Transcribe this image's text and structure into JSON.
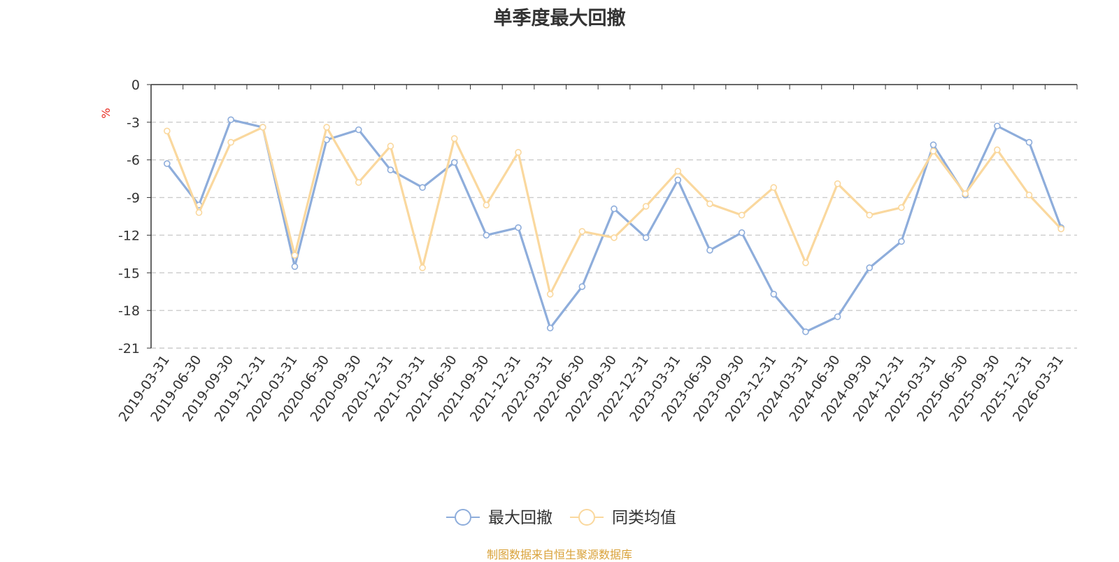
{
  "title": "单季度最大回撤",
  "source": "制图数据来自恒生聚源数据库",
  "colors": {
    "series1": "#8eaddb",
    "series2": "#fad89e",
    "unit": "#e8281e",
    "axis": "#333333",
    "grid": "#cccccc"
  },
  "chart_data": {
    "type": "line",
    "title": "单季度最大回撤",
    "ylabel": "%",
    "xlabel": "",
    "ylim": [
      -21,
      0
    ],
    "yticks": [
      0,
      -3,
      -6,
      -9,
      -12,
      -15,
      -18,
      -21
    ],
    "grid": true,
    "legend_position": "bottom-center",
    "categories": [
      "2019-03-31",
      "2019-06-30",
      "2019-09-30",
      "2019-12-31",
      "2020-03-31",
      "2020-06-30",
      "2020-09-30",
      "2020-12-31",
      "2021-03-31",
      "2021-06-30",
      "2021-09-30",
      "2021-12-31",
      "2022-03-31",
      "2022-06-30",
      "2022-09-30",
      "2022-12-31",
      "2023-03-31",
      "2023-06-30",
      "2023-09-30",
      "2023-12-31",
      "2024-03-31",
      "2024-06-30",
      "2024-09-30",
      "2024-12-31",
      "2025-03-31",
      "2025-06-30",
      "2025-09-30",
      "2025-12-31",
      "2026-03-31"
    ],
    "series": [
      {
        "name": "最大回撤",
        "values": [
          -6.3,
          -9.6,
          -2.8,
          -3.4,
          -14.5,
          -4.4,
          -3.6,
          -6.8,
          -8.2,
          -6.2,
          -12.0,
          -11.4,
          -19.4,
          -16.1,
          -9.9,
          -12.2,
          -7.6,
          -13.2,
          -11.8,
          -16.7,
          -19.7,
          -18.5,
          -14.6,
          -12.5,
          -4.8,
          -8.8,
          -3.3,
          -4.6,
          -11.4
        ]
      },
      {
        "name": "同类均值",
        "values": [
          -3.7,
          -10.2,
          -4.6,
          -3.4,
          -13.6,
          -3.4,
          -7.8,
          -4.9,
          -14.6,
          -4.3,
          -9.6,
          -5.4,
          -16.7,
          -11.7,
          -12.2,
          -9.7,
          -6.9,
          -9.5,
          -10.4,
          -8.2,
          -14.2,
          -7.9,
          -10.4,
          -9.8,
          -5.3,
          -8.7,
          -5.2,
          -8.8,
          -11.5
        ]
      }
    ]
  }
}
